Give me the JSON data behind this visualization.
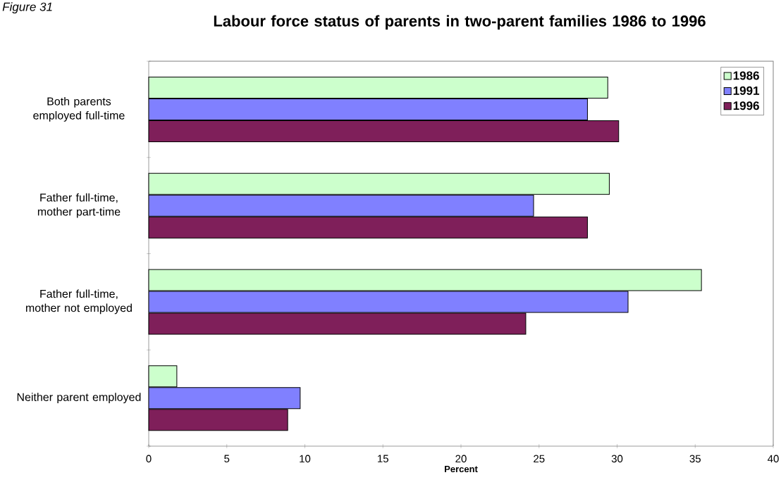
{
  "chart_data": {
    "type": "bar",
    "orientation": "horizontal",
    "title": "Labour force status of parents in two-parent families 1986 to 1996",
    "xlabel": "Percent",
    "annotations": [
      "Figure 31"
    ],
    "categories": [
      "Both parents employed full-time",
      "Father full-time, mother part-time",
      "Father full-time, mother not employed",
      "Neither parent employed"
    ],
    "series": [
      {
        "name": "1986",
        "color": "#ccffcc",
        "values": [
          29.4,
          29.5,
          35.4,
          1.8
        ]
      },
      {
        "name": "1991",
        "color": "#8080ff",
        "values": [
          28.1,
          24.65,
          30.7,
          9.7
        ]
      },
      {
        "name": "1996",
        "color": "#7f1f5a",
        "values": [
          30.1,
          28.1,
          24.15,
          8.9
        ]
      }
    ],
    "xlim": [
      0,
      40
    ],
    "xticks": [
      0,
      5,
      10,
      15,
      20,
      25,
      30,
      35,
      40
    ],
    "legend": "top right"
  }
}
